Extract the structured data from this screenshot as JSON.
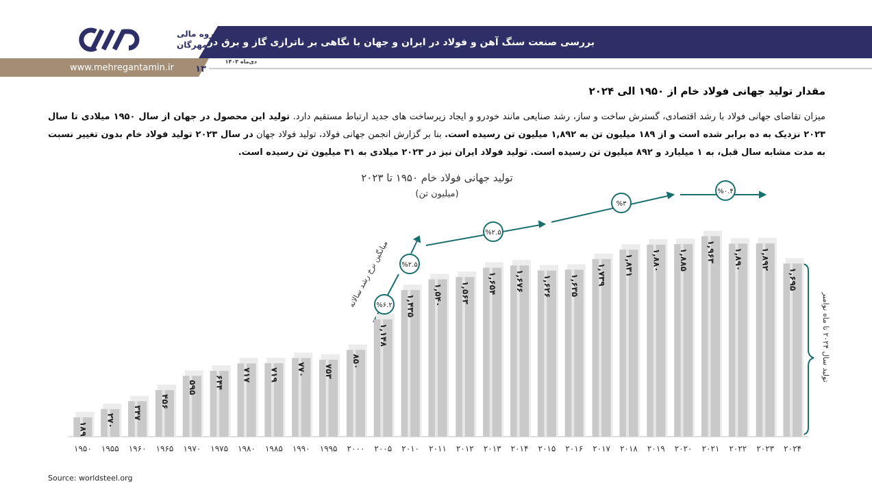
{
  "header": {
    "logo_text": "گروه مالی",
    "logo_text_2": "مهرگان",
    "title": "بررسی صنعت سنگ آهن و فولاد در ایران و جهان با نگاهی بر ناترازی گاز و برق در صنعت فولاد",
    "date": "دی‌ماه ۱۴۰۳",
    "website": "www.mehregantamin.ir",
    "page_number": "۱۳"
  },
  "section_title": "مقدار تولید جهانی فولاد خام از ۱۹۵۰ الی ۲۰۲۴",
  "paragraph": [
    {
      "text": "میزان تقاضای جهانی فولاد با رشد اقتصادی، گسترش ساخت و ساز، رشد صنایعی مانند خودرو و ایجاد زیرساخت های جدید ارتباط مستقیم دارد. ",
      "bold": false
    },
    {
      "text": "تولید این محصول در جهان از سال ۱۹۵۰ میلادی تا سال ۲۰۲۳ نزدیک به ده برابر شده است و از ۱۸۹ میلیون تن به ۱,۸۹۲ میلیون تن رسیده است.",
      "bold": true
    },
    {
      "text": " بنا بر گزارش انجمن جهانی فولاد، تولید فولاد جهان ",
      "bold": false
    },
    {
      "text": "در سال ۲۰۲۳ تولید فولاد خام بدون تغییر نسبت به مدت مشابه سال قبل، به ۱ میلیارد و ۸۹۲ میلیون تن رسیده است. تولید فولاد ایران نیز در ۲۰۲۳ میلادی به ۳۱ میلیون تن رسیده است.",
      "bold": true
    }
  ],
  "chart_data": {
    "type": "bar",
    "title": "تولید جهانی فولاد خام ۱۹۵۰ تا ۲۰۲۳",
    "subtitle": "(میلیون تن)",
    "categories": [
      "۱۹۵۰",
      "۱۹۵۵",
      "۱۹۶۰",
      "۱۹۶۵",
      "۱۹۷۰",
      "۱۹۷۵",
      "۱۹۸۰",
      "۱۹۸۵",
      "۱۹۹۰",
      "۱۹۹۵",
      "۲۰۰۰",
      "۲۰۰۵",
      "۲۰۱۰",
      "۲۰۱۱",
      "۲۰۱۲",
      "۲۰۱۳",
      "۲۰۱۴",
      "۲۰۱۵",
      "۲۰۱۶",
      "۲۰۱۷",
      "۲۰۱۸",
      "۲۰۱۹",
      "۲۰۲۰",
      "۲۰۲۱",
      "۲۰۲۲",
      "۲۰۲۳",
      "۲۰۲۴"
    ],
    "values": [
      189,
      270,
      347,
      456,
      595,
      644,
      717,
      719,
      770,
      753,
      850,
      1148,
      1435,
      1540,
      1563,
      1654,
      1676,
      1626,
      1635,
      1739,
      1831,
      1880,
      1885,
      1963,
      1890,
      1892,
      1695
    ],
    "value_labels": [
      "۱۸۹",
      "۲۷۰",
      "۳۴۷",
      "۴۵۶",
      "۵۹۵",
      "۶۴۴",
      "۷۱۷",
      "۷۱۹",
      "۷۷۰",
      "۷۵۳",
      "۸۵۰",
      "۱,۱۴۸",
      "۱,۴۳۵",
      "۱,۵۴۰",
      "۱,۵۶۳",
      "۱,۶۵۴",
      "۱,۶۷۶",
      "۱,۶۲۶",
      "۱,۶۳۵",
      "۱,۷۳۹",
      "۱,۸۳۱",
      "۱,۸۸۰",
      "۱,۸۸۵",
      "۱,۹۶۳",
      "۱,۸۹۰",
      "۱,۸۹۲",
      "۱,۶۹۵"
    ],
    "color": "#c9c9c9",
    "ylim": [
      0,
      2000
    ],
    "growth_label": "میانگین نرخ رشد سالانه",
    "growth_rates": [
      "%۶.۲",
      "%۲.۵",
      "%۲.۵",
      "%۳",
      "%۰.۴"
    ],
    "bracket_label": "تولید سال ۲۰۲۴ تا ماه نوامبر",
    "source": "Source: worldsteel.org"
  }
}
